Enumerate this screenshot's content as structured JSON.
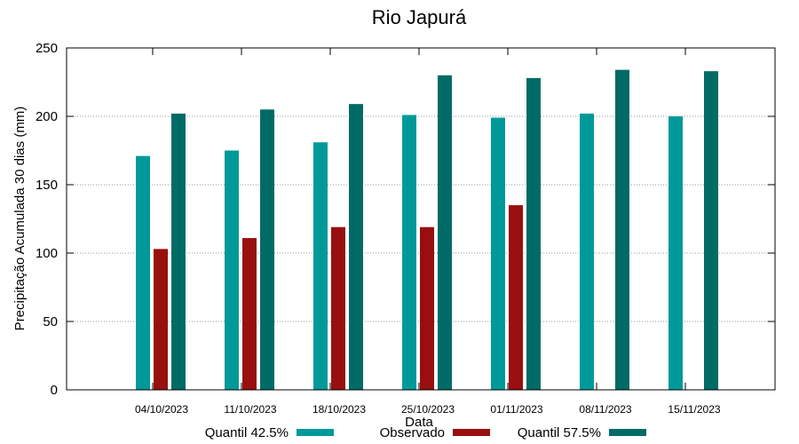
{
  "chart_data": {
    "type": "bar",
    "title": "Rio Japurá",
    "xlabel": "Data",
    "ylabel": "Precipitação Acumulada 30 dias (mm)",
    "ylim": [
      0,
      250
    ],
    "yticks": [
      0,
      50,
      100,
      150,
      200,
      250
    ],
    "grid": true,
    "legend_position": "bottom",
    "categories": [
      "04/10/2023",
      "11/10/2023",
      "18/10/2023",
      "25/10/2023",
      "01/11/2023",
      "08/11/2023",
      "15/11/2023"
    ],
    "series": [
      {
        "name": "Quantil 42.5%",
        "color": "#009999",
        "values": [
          171,
          175,
          181,
          201,
          199,
          202,
          200
        ]
      },
      {
        "name": "Observado",
        "color": "#990f0f",
        "values": [
          103,
          111,
          119,
          119,
          135,
          null,
          null
        ]
      },
      {
        "name": "Quantil 57.5%",
        "color": "#006b66",
        "values": [
          202,
          205,
          209,
          230,
          228,
          234,
          233
        ]
      }
    ]
  }
}
